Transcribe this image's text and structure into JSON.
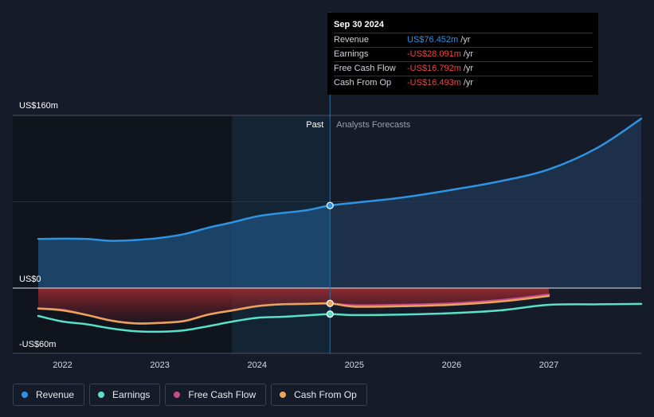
{
  "chart_data": {
    "type": "area",
    "y_tick_labels": [
      "US$160m",
      "US$0",
      "-US$60m"
    ],
    "y_tick_values": [
      160,
      0,
      -60
    ],
    "ylim": [
      -60,
      160
    ],
    "xlim": [
      2021.75,
      2027.95
    ],
    "x_tick_labels": [
      "2022",
      "2023",
      "2024",
      "2025",
      "2026",
      "2027"
    ],
    "x_tick_values": [
      2022,
      2023,
      2024,
      2025,
      2026,
      2027
    ],
    "past_label": "Past",
    "forecast_label": "Analysts Forecasts",
    "divider_x": 2024.75,
    "series": [
      {
        "name": "Revenue",
        "color": "#2e93e3",
        "x": [
          2021.75,
          2022.0,
          2022.25,
          2022.5,
          2022.75,
          2023.0,
          2023.25,
          2023.5,
          2023.75,
          2024.0,
          2024.25,
          2024.5,
          2024.75,
          2025.0,
          2025.5,
          2026.0,
          2026.5,
          2027.0,
          2027.5,
          2027.95
        ],
        "values": [
          45.5,
          45.8,
          45.5,
          43.8,
          44.5,
          46.5,
          50.0,
          56.0,
          61.0,
          66.5,
          69.5,
          72.0,
          76.5,
          79.0,
          84.0,
          91.0,
          99.0,
          110.0,
          130.0,
          157.0
        ]
      },
      {
        "name": "Earnings",
        "color": "#58e0c8",
        "x": [
          2021.75,
          2022.0,
          2022.25,
          2022.5,
          2022.75,
          2023.0,
          2023.25,
          2023.5,
          2023.75,
          2024.0,
          2024.25,
          2024.5,
          2024.75,
          2025.0,
          2025.5,
          2026.0,
          2026.5,
          2027.0,
          2027.5,
          2027.95
        ],
        "values": [
          -30.0,
          -36.0,
          -39.0,
          -43.5,
          -46.5,
          -47.0,
          -45.5,
          -41.0,
          -36.0,
          -32.0,
          -31.0,
          -29.5,
          -28.1,
          -29.0,
          -28.5,
          -27.0,
          -24.0,
          -18.0,
          -17.5,
          -17.0
        ]
      },
      {
        "name": "Free Cash Flow",
        "color": "#c84a8c",
        "x": [
          2021.75,
          2022.0,
          2022.25,
          2022.5,
          2022.75,
          2023.0,
          2023.25,
          2023.5,
          2023.75,
          2024.0,
          2024.25,
          2024.5,
          2024.75,
          2025.0,
          2025.5,
          2026.0,
          2026.5,
          2027.0
        ],
        "values": [
          -22.0,
          -23.5,
          -29.0,
          -35.0,
          -38.0,
          -37.5,
          -35.5,
          -28.5,
          -24.0,
          -19.5,
          -17.5,
          -17.0,
          -16.8,
          -18.5,
          -18.0,
          -16.5,
          -13.0,
          -7.0
        ]
      },
      {
        "name": "Cash From Op",
        "color": "#e9a45a",
        "x": [
          2021.75,
          2022.0,
          2022.25,
          2022.5,
          2022.75,
          2023.0,
          2023.25,
          2023.5,
          2023.75,
          2024.0,
          2024.25,
          2024.5,
          2024.75,
          2025.0,
          2025.5,
          2026.0,
          2026.5,
          2027.0
        ],
        "values": [
          -22.0,
          -24.0,
          -29.0,
          -35.0,
          -38.0,
          -37.5,
          -35.5,
          -28.5,
          -24.0,
          -19.5,
          -17.5,
          -17.0,
          -16.5,
          -20.0,
          -19.5,
          -18.0,
          -14.5,
          -8.5
        ]
      }
    ]
  },
  "tooltip": {
    "date": "Sep 30 2024",
    "rows": [
      {
        "label": "Revenue",
        "value": "US$76.452m",
        "unit": "/yr",
        "color": "#2e93e3"
      },
      {
        "label": "Earnings",
        "value": "-US$28.091m",
        "unit": "/yr",
        "color": "#e84545"
      },
      {
        "label": "Free Cash Flow",
        "value": "-US$16.792m",
        "unit": "/yr",
        "color": "#e84545"
      },
      {
        "label": "Cash From Op",
        "value": "-US$16.493m",
        "unit": "/yr",
        "color": "#e84545"
      }
    ]
  },
  "legend": [
    {
      "label": "Revenue",
      "color": "#2e93e3"
    },
    {
      "label": "Earnings",
      "color": "#58e0c8"
    },
    {
      "label": "Free Cash Flow",
      "color": "#c84a8c"
    },
    {
      "label": "Cash From Op",
      "color": "#e9a45a"
    }
  ]
}
